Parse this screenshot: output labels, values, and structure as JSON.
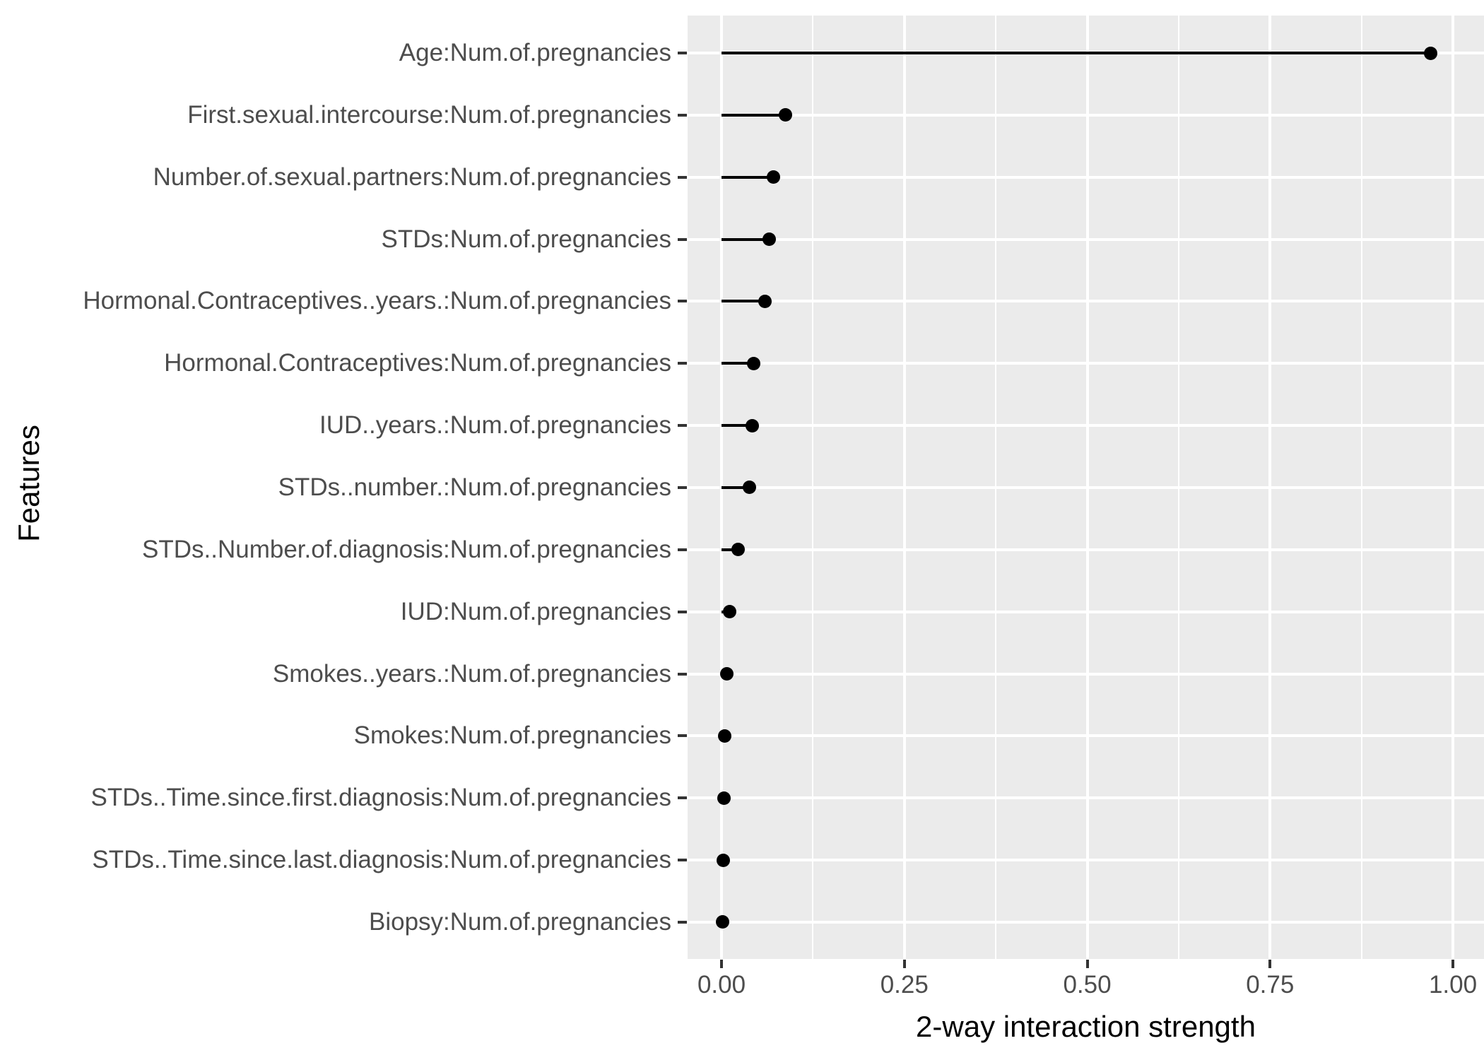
{
  "chart_data": {
    "type": "scatter",
    "style": "horizontal-lollipop",
    "title": "",
    "xlabel": "2-way interaction strength",
    "ylabel": "Features",
    "categories": [
      "Age:Num.of.pregnancies",
      "First.sexual.intercourse:Num.of.pregnancies",
      "Number.of.sexual.partners:Num.of.pregnancies",
      "STDs:Num.of.pregnancies",
      "Hormonal.Contraceptives..years.:Num.of.pregnancies",
      "Hormonal.Contraceptives:Num.of.pregnancies",
      "IUD..years.:Num.of.pregnancies",
      "STDs..number.:Num.of.pregnancies",
      "STDs..Number.of.diagnosis:Num.of.pregnancies",
      "IUD:Num.of.pregnancies",
      "Smokes..years.:Num.of.pregnancies",
      "Smokes:Num.of.pregnancies",
      "STDs..Time.since.first.diagnosis:Num.of.pregnancies",
      "STDs..Time.since.last.diagnosis:Num.of.pregnancies",
      "Biopsy:Num.of.pregnancies"
    ],
    "values": [
      0.97,
      0.087,
      0.071,
      0.065,
      0.059,
      0.044,
      0.042,
      0.038,
      0.023,
      0.011,
      0.007,
      0.004,
      0.003,
      0.002,
      0.001
    ],
    "xlim": [
      -0.046,
      1.042
    ],
    "x_ticks": [
      0,
      0.25,
      0.5,
      0.75,
      1.0
    ],
    "x_tick_labels": [
      "0.00",
      "0.25",
      "0.50",
      "0.75",
      "1.00"
    ],
    "x_minor_ticks": [
      0.125,
      0.375,
      0.625,
      0.875
    ],
    "grid": "on",
    "legend": "none",
    "colors": {
      "panel_background": "#ebebeb",
      "gridline": "#ffffff",
      "point": "#000000",
      "segment": "#000000",
      "axis_text": "#4d4d4d",
      "axis_title": "#000000",
      "tick_mark": "#333333"
    }
  }
}
